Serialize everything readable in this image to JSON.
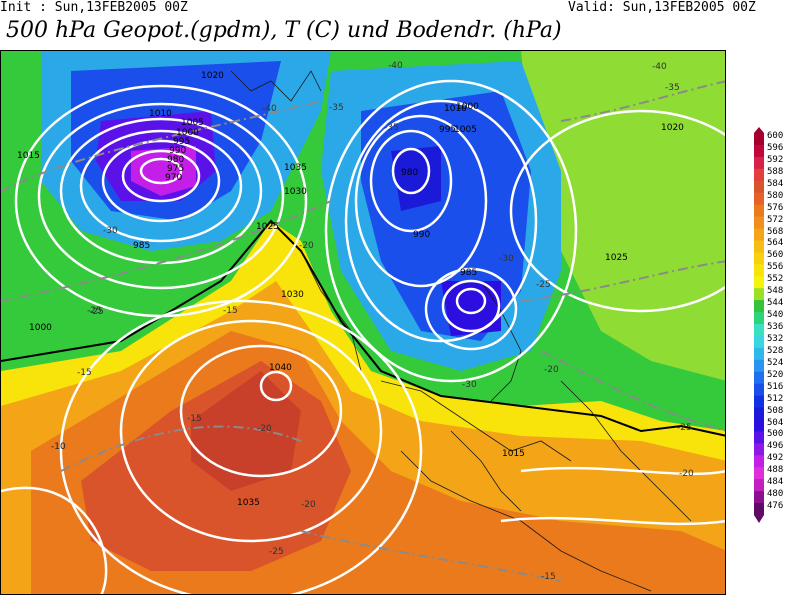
{
  "header": {
    "init": "Init : Sun,13FEB2005 00Z",
    "valid": "Valid: Sun,13FEB2005 00Z",
    "title": "500 hPa Geopot.(gpdm), T (C) und Bodendr. (hPa)"
  },
  "legend": {
    "levels": [
      "600",
      "596",
      "592",
      "588",
      "584",
      "580",
      "576",
      "572",
      "568",
      "564",
      "560",
      "556",
      "552",
      "548",
      "544",
      "540",
      "536",
      "532",
      "528",
      "524",
      "520",
      "516",
      "512",
      "508",
      "504",
      "500",
      "496",
      "492",
      "488",
      "484",
      "480",
      "476"
    ],
    "colors": [
      "#a5002d",
      "#c0063a",
      "#d8214a",
      "#e23e3e",
      "#d9532b",
      "#e5602a",
      "#eb7a1d",
      "#f08f20",
      "#f3a417",
      "#f7bd14",
      "#f8d00b",
      "#f8e30b",
      "#f3f30b",
      "#9be024",
      "#33c33c",
      "#2ed47a",
      "#3be0c1",
      "#3ad6e0",
      "#2fb9ea",
      "#2a95ee",
      "#1f6ff0",
      "#1b4fec",
      "#1230e4",
      "#1a1ad8",
      "#2c0ee0",
      "#5a12e8",
      "#8d19e6",
      "#c41fe8",
      "#e02fd8",
      "#c21ec0",
      "#8b0f8f",
      "#5f0a63"
    ]
  },
  "isobar_labels": [
    {
      "t": "1020"
    },
    {
      "t": "1015"
    },
    {
      "t": "1010"
    },
    {
      "t": "1005"
    },
    {
      "t": "1000"
    },
    {
      "t": "995"
    },
    {
      "t": "990"
    },
    {
      "t": "985"
    },
    {
      "t": "980"
    },
    {
      "t": "975"
    },
    {
      "t": "970"
    },
    {
      "t": "1035"
    },
    {
      "t": "1030"
    },
    {
      "t": "1025"
    },
    {
      "t": "1040"
    },
    {
      "t": "1020"
    },
    {
      "t": "1010"
    },
    {
      "t": "1005"
    },
    {
      "t": "1000"
    },
    {
      "t": "995"
    },
    {
      "t": "990"
    },
    {
      "t": "985"
    },
    {
      "t": "980"
    },
    {
      "t": "1030"
    },
    {
      "t": "1025"
    },
    {
      "t": "1035"
    },
    {
      "t": "1015"
    },
    {
      "t": "1000"
    }
  ],
  "temp_labels": [
    "-40",
    "-35",
    "-30",
    "-25",
    "-20",
    "-15",
    "-10",
    "-40",
    "-35",
    "-30",
    "-25",
    "-20",
    "-15",
    "-25",
    "-20",
    "-30",
    "-35",
    "-40",
    "-25",
    "-20",
    "-15",
    "-10",
    "-20",
    "-25",
    "-15"
  ]
}
